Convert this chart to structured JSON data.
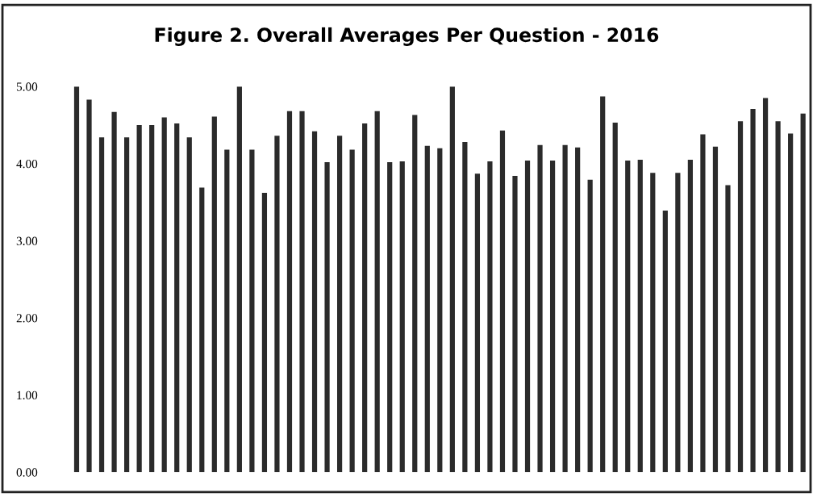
{
  "chart_data": {
    "type": "bar",
    "title": "Figure 2. Overall Averages Per Question - 2016",
    "categories": [
      null,
      null,
      null,
      null,
      null,
      null,
      null,
      null,
      null,
      null,
      null,
      null,
      null,
      null,
      null,
      null,
      null,
      null,
      null,
      null,
      null,
      null,
      null,
      null,
      null,
      null,
      null,
      null,
      null,
      null,
      null,
      null,
      null,
      null,
      null,
      null,
      null,
      null,
      null,
      null,
      null,
      null,
      null,
      null,
      null,
      null,
      null,
      null,
      null,
      null,
      null,
      null,
      null,
      null,
      null,
      null,
      null,
      null,
      null
    ],
    "values": [
      5.0,
      4.83,
      4.34,
      4.67,
      4.34,
      4.5,
      4.5,
      4.6,
      4.52,
      4.34,
      3.69,
      4.61,
      4.18,
      5.0,
      4.18,
      3.62,
      4.36,
      4.68,
      4.68,
      4.42,
      4.02,
      4.36,
      4.18,
      4.52,
      4.68,
      4.02,
      4.03,
      4.63,
      4.23,
      4.2,
      5.0,
      4.28,
      3.87,
      4.03,
      4.43,
      3.84,
      4.04,
      4.24,
      4.04,
      4.24,
      4.21,
      3.79,
      4.87,
      4.53,
      4.04,
      4.05,
      3.88,
      3.39,
      3.88,
      4.05,
      4.38,
      4.22,
      3.72,
      4.55,
      4.71,
      4.85,
      4.55,
      4.39,
      4.65
    ],
    "color": "#2b2b2b",
    "ylim": [
      0,
      5
    ],
    "yticks": [
      {
        "value": 0,
        "label": "0.00"
      },
      {
        "value": 1,
        "label": "1.00"
      },
      {
        "value": 2,
        "label": "2.00"
      },
      {
        "value": 3,
        "label": "3.00"
      },
      {
        "value": 4,
        "label": "4.00"
      },
      {
        "value": 5,
        "label": "5.00"
      }
    ],
    "grid": false,
    "legend": false
  }
}
